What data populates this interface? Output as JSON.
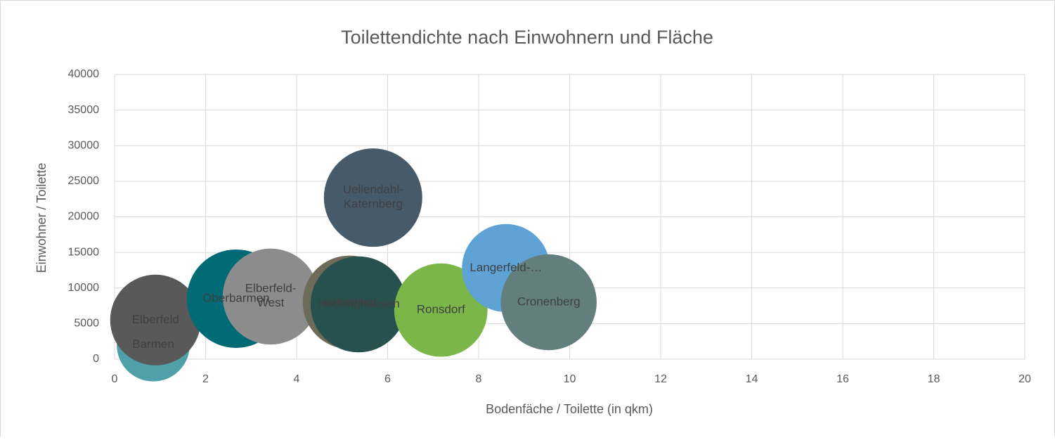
{
  "chart_data": {
    "type": "bubble",
    "title": "Toilettendichte nach Einwohnern und Fläche",
    "xlabel": "Bodenfäche / Toilette (in qkm)",
    "ylabel": "Einwohner / Toilette",
    "xlim": [
      0,
      20
    ],
    "xticks": [
      0,
      2,
      4,
      6,
      8,
      10,
      12,
      14,
      16,
      18,
      20
    ],
    "ylim": [
      0,
      40000
    ],
    "yticks": [
      0,
      5000,
      10000,
      15000,
      20000,
      25000,
      30000,
      35000,
      40000
    ],
    "grid": true,
    "points": [
      {
        "label": "Barmen",
        "color": "#4fa0a8",
        "x": 0.85,
        "y": 2000,
        "size": 0.55
      },
      {
        "label": "Elberfeld",
        "color": "#595959",
        "x": 0.9,
        "y": 5500,
        "size": 0.85
      },
      {
        "label": "Oberbarmen",
        "color": "#006b75",
        "x": 2.67,
        "y": 8500,
        "size": 1.0
      },
      {
        "label": "Elberfeld-West",
        "color": "#8c8c8c",
        "x": 3.43,
        "y": 8800,
        "size": 0.95
      },
      {
        "label": "Vohwinkel",
        "color": "#6e6c58",
        "x": 5.16,
        "y": 8000,
        "size": 0.9
      },
      {
        "label": "Heckinghausen",
        "color": "#27514f",
        "x": 5.36,
        "y": 7700,
        "size": 0.95
      },
      {
        "label": "Uellendahl-Katernberg",
        "color": "#465a6a",
        "x": 5.68,
        "y": 22700,
        "size": 1.0
      },
      {
        "label": "Ronsdorf",
        "color": "#7ab648",
        "x": 7.17,
        "y": 6900,
        "size": 0.9
      },
      {
        "label": "Langerfeld-…",
        "color": "#5fa3d6",
        "x": 8.6,
        "y": 12800,
        "size": 0.8
      },
      {
        "label": "Cronenberg",
        "color": "#637f7d",
        "x": 9.54,
        "y": 8000,
        "size": 0.95
      }
    ]
  }
}
